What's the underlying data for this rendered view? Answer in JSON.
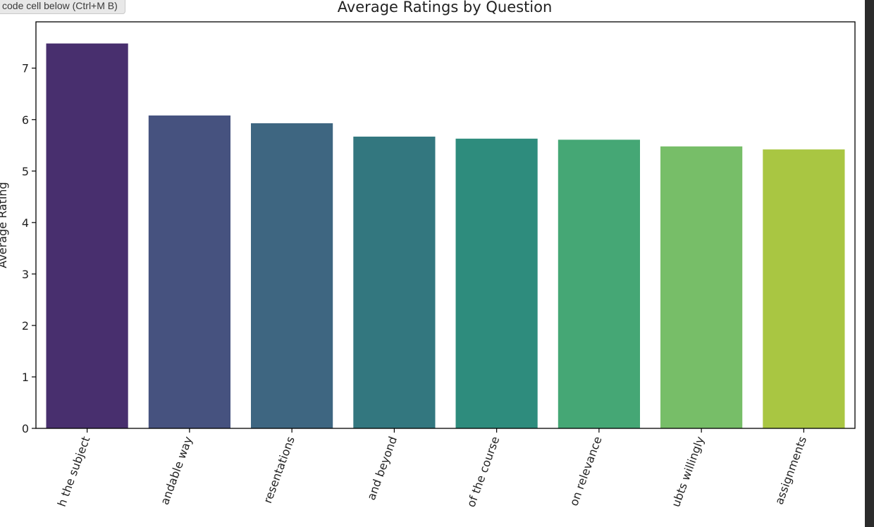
{
  "tooltip": {
    "text": "code cell below (Ctrl+M B)"
  },
  "chart_data": {
    "type": "bar",
    "title": "Average Ratings by Question",
    "ylabel": "Average Rating",
    "ylim": [
      0,
      7.9
    ],
    "yticks": [
      0,
      1,
      2,
      3,
      4,
      5,
      6,
      7
    ],
    "categories": [
      "h the subject",
      "andable way",
      "resentations",
      "and beyond",
      "of the course",
      "on relevance",
      "ubts willingly",
      "assignments"
    ],
    "values": [
      7.48,
      6.08,
      5.93,
      5.67,
      5.63,
      5.61,
      5.48,
      5.42
    ],
    "colors": [
      "#482f6e",
      "#46527f",
      "#3e6681",
      "#33777f",
      "#2e8c7d",
      "#45a775",
      "#77be68",
      "#a9c642"
    ],
    "grid": false
  }
}
